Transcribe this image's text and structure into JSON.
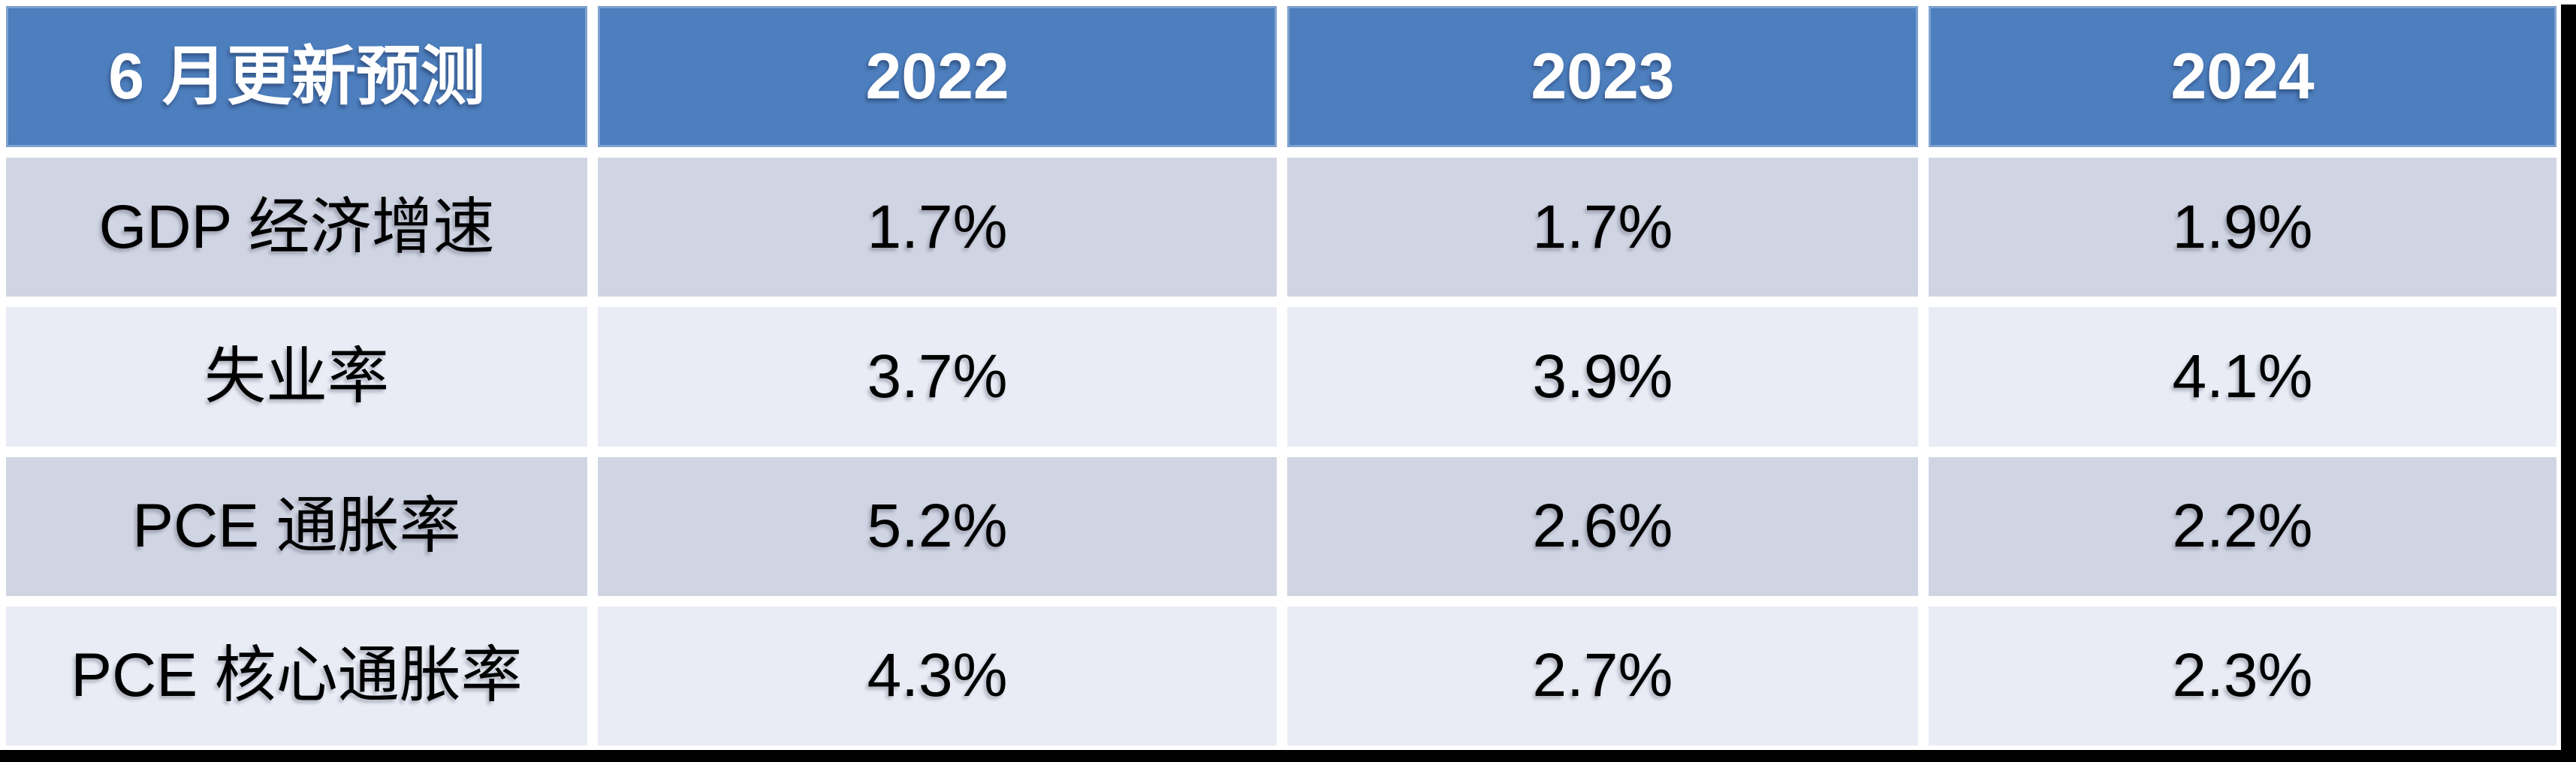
{
  "chart_data": {
    "type": "table",
    "title": "6 月更新预测",
    "columns": [
      "6 月更新预测",
      "2022",
      "2023",
      "2024"
    ],
    "rows": [
      [
        "GDP 经济增速",
        "1.7%",
        "1.7%",
        "1.9%"
      ],
      [
        "失业率",
        "3.7%",
        "3.9%",
        "4.1%"
      ],
      [
        "PCE 通胀率",
        "5.2%",
        "2.6%",
        "2.2%"
      ],
      [
        "PCE 核心通胀率",
        "4.3%",
        "2.7%",
        "2.3%"
      ]
    ],
    "layout_hints": {
      "header_row": true,
      "banded_rows": "rows 1 and 3 darker, rows 2 and 4 lighter",
      "cell_text_alignment": "center",
      "grid": "white gutters between cells, black bar on right and bottom edges"
    }
  },
  "colors": {
    "header_bg": "#4d7ebd",
    "header_text": "#ffffff",
    "row_dark": "#d0d5e3",
    "row_light": "#e9ecf5",
    "body_text": "#000000",
    "gutter": "#ffffff",
    "frame_bar": "#000000"
  }
}
